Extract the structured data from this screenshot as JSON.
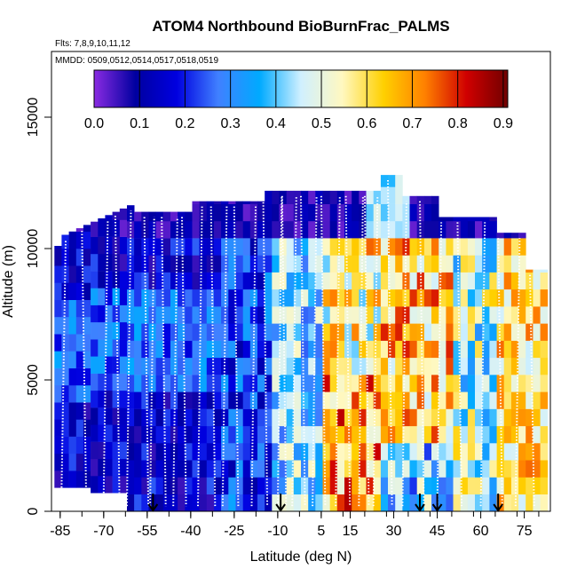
{
  "chart_data": {
    "type": "heatmap",
    "title": "ATOM4 Northbound BioBurnFrac_PALMS",
    "flights_label": "Flts: 7,8,9,10,11,12",
    "dates_label": "MMDD: 0509,0512,0514,0517,0518,0519",
    "xlabel": "Latitude (deg N)",
    "ylabel": "Altitude (m)",
    "x_ticks": [
      "-85",
      "-70",
      "-55",
      "-40",
      "-25",
      "-10",
      "5",
      "15",
      "30",
      "45",
      "60",
      "75"
    ],
    "x_tick_values": [
      -85,
      -70,
      -55,
      -40,
      -25,
      -10,
      5,
      15,
      30,
      45,
      60,
      75
    ],
    "y_ticks": [
      "0",
      "5000",
      "10000",
      "15000"
    ],
    "y_tick_values": [
      0,
      5000,
      10000,
      15000
    ],
    "xlim": [
      -88,
      84
    ],
    "ylim": [
      0,
      17500
    ],
    "colorbar": {
      "ticks": [
        "0.0",
        "0.1",
        "0.2",
        "0.3",
        "0.4",
        "0.5",
        "0.6",
        "0.7",
        "0.8",
        "0.9"
      ],
      "range": [
        0,
        0.91
      ],
      "colors": [
        "#8a2be2",
        "#0000a0",
        "#0000e0",
        "#4080ff",
        "#00aaff",
        "#d0f0ff",
        "#fff8c0",
        "#ffd000",
        "#ff8000",
        "#d00000",
        "#700000"
      ]
    },
    "arrow_latitudes": [
      -53,
      -9,
      39,
      45,
      66
    ],
    "grid_lat_step": 2.5,
    "grid_alt_step": 650,
    "profile_latitudes": [
      -84.5,
      -77.5,
      -70,
      -66,
      -62,
      -56,
      -54,
      -50,
      -46,
      -43,
      -37.5,
      -33,
      -29,
      -25,
      -19,
      -15,
      -10,
      -8.5,
      -5,
      -2,
      2,
      5,
      10,
      13.5,
      18,
      20,
      23,
      28,
      33,
      39,
      45,
      52,
      60,
      66,
      72,
      77
    ]
  }
}
